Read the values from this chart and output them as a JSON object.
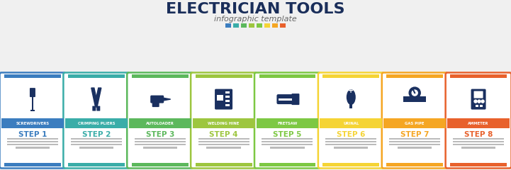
{
  "title": "ELECTRICIAN TOOLS",
  "subtitle": "infographic template",
  "title_color": "#1a2e5a",
  "subtitle_color": "#666666",
  "steps": [
    {
      "label": "SCREWDRIVERS",
      "step": "STEP 1",
      "color": "#3b7dbf"
    },
    {
      "label": "CRIMPING PLIERS",
      "step": "STEP 2",
      "color": "#3aada8"
    },
    {
      "label": "AUTOLOADER",
      "step": "STEP 3",
      "color": "#5cb85c"
    },
    {
      "label": "WELDING HINE",
      "step": "STEP 4",
      "color": "#9dc63f"
    },
    {
      "label": "FRETSAW",
      "step": "STEP 5",
      "color": "#7dc843"
    },
    {
      "label": "URINAL",
      "step": "STEP 6",
      "color": "#f5d435"
    },
    {
      "label": "GAS PIPE",
      "step": "STEP 7",
      "color": "#f5a623"
    },
    {
      "label": "AMMETER",
      "step": "STEP 8",
      "color": "#e8612c"
    }
  ],
  "dot_colors": [
    "#3b7dbf",
    "#3aada8",
    "#5cb85c",
    "#9dc63f",
    "#7dc843",
    "#f5d435",
    "#f5a623",
    "#e8612c"
  ],
  "bg_color": "#f0f0f0",
  "card_bg": "#ffffff",
  "icon_color": "#1a3060",
  "label_text_color": "#ffffff",
  "lorem_color": "#bbbbbb"
}
